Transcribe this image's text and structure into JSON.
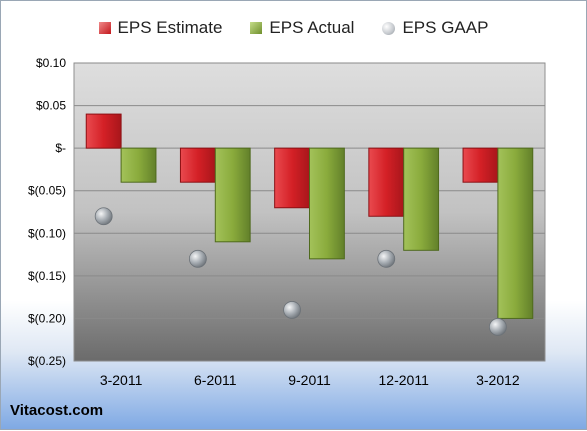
{
  "chart_data": {
    "type": "bar",
    "categories": [
      "3-2011",
      "6-2011",
      "9-2011",
      "12-2011",
      "3-2012"
    ],
    "series": [
      {
        "name": "EPS Estimate",
        "values": [
          0.04,
          -0.04,
          -0.07,
          -0.08,
          -0.04
        ],
        "color": "#d42026"
      },
      {
        "name": "EPS Actual",
        "values": [
          -0.04,
          -0.11,
          -0.13,
          -0.12,
          -0.2
        ],
        "color": "#8aab3c"
      },
      {
        "name": "EPS GAAP",
        "values": [
          -0.08,
          -0.13,
          -0.19,
          -0.13,
          -0.21
        ],
        "color": "#b9bec4"
      }
    ],
    "ylim": [
      -0.25,
      0.1
    ],
    "yticks": [
      0.1,
      0.05,
      0,
      -0.05,
      -0.1,
      -0.15,
      -0.2,
      -0.25
    ],
    "ytick_labels": [
      "$0.10",
      "$0.05",
      "$-",
      "$(0.05)",
      "$(0.10)",
      "$(0.15)",
      "$(0.20)",
      "$(0.25)"
    ],
    "grid": true,
    "legend_position": "top"
  },
  "legend": {
    "estimate_label": "EPS Estimate",
    "actual_label": "EPS Actual",
    "gaap_label": "EPS GAAP"
  },
  "brand_text": "Vitacost.com"
}
